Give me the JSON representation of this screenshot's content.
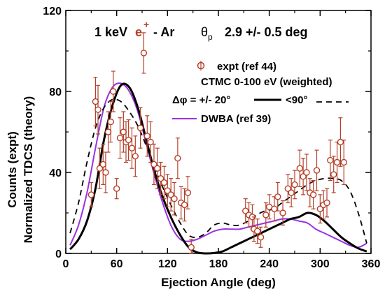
{
  "chart_data": {
    "type": "line",
    "title_parts": {
      "energy": "1 keV",
      "particle": "e",
      "charge": "+",
      "target": "- Ar",
      "theta_sym": "θ",
      "theta_sub": "p",
      "theta_val": "2.9 +/-  0.5 deg"
    },
    "xlabel": "Ejection Angle (deg)",
    "ylabel_outer": "Counts (expt)",
    "ylabel_inner": "Normalized TDCS (theory)",
    "xlim": [
      0,
      360
    ],
    "ylim": [
      0,
      120
    ],
    "x_ticks": [
      "0",
      "60",
      "120",
      "180",
      "240",
      "300",
      "360"
    ],
    "y_ticks": [
      "0",
      "40",
      "80",
      "120"
    ],
    "grid": false,
    "legend": {
      "expt": "expt (ref 44)",
      "ctmc": "CTMC 0-100 eV (weighted)",
      "delta_phi": "Δφ = +/- 20°",
      "lt90": "<90°",
      "dwba": "DWBA (ref 39)"
    },
    "colors": {
      "expt": "#b5402a",
      "ctmc": "#000000",
      "dwba": "#9b30e0",
      "text": "#000000"
    },
    "series": [
      {
        "name": "expt (ref 44)",
        "style": "points-with-errorbars",
        "x": [
          30,
          35,
          38,
          40,
          44,
          47,
          50,
          53,
          56,
          60,
          64,
          68,
          71,
          74,
          78,
          82,
          88,
          92,
          96,
          100,
          104,
          108,
          112,
          116,
          120,
          124,
          128,
          132,
          136,
          140,
          144,
          148,
          212,
          216,
          220,
          222,
          226,
          230,
          236,
          240,
          246,
          250,
          256,
          262,
          266,
          270,
          276,
          280,
          284,
          288,
          292,
          296,
          300,
          304,
          308,
          312,
          316,
          320,
          324,
          328
        ],
        "y": [
          29,
          75,
          71,
          42,
          44,
          40,
          60,
          65,
          80,
          32,
          57,
          60,
          55,
          56,
          52,
          48,
          62,
          99,
          58,
          55,
          44,
          42,
          37,
          35,
          31,
          29,
          27,
          47,
          25,
          24,
          30,
          3,
          21,
          19,
          18,
          12,
          11,
          8,
          19,
          23,
          22,
          28,
          20,
          32,
          30,
          34,
          42,
          38,
          40,
          30,
          29,
          41,
          22,
          24,
          25,
          46,
          39,
          45,
          55,
          45
        ],
        "err": [
          6,
          12,
          12,
          10,
          10,
          10,
          10,
          10,
          10,
          5,
          10,
          10,
          10,
          10,
          10,
          10,
          10,
          10,
          10,
          10,
          10,
          10,
          8,
          8,
          8,
          8,
          8,
          10,
          8,
          8,
          8,
          4,
          6,
          6,
          6,
          6,
          6,
          5,
          6,
          6,
          6,
          7,
          6,
          7,
          7,
          7,
          9,
          9,
          9,
          7,
          7,
          10,
          7,
          7,
          7,
          10,
          9,
          10,
          12,
          11
        ]
      },
      {
        "name": "Δφ = +/- 20°",
        "style": "solid",
        "x": [
          5,
          15,
          25,
          35,
          45,
          55,
          65,
          75,
          85,
          95,
          105,
          115,
          125,
          135,
          145,
          155,
          165,
          175,
          185,
          195,
          205,
          215,
          225,
          235,
          245,
          255,
          265,
          275,
          285,
          295,
          305,
          315,
          325,
          335,
          345,
          355
        ],
        "y": [
          2,
          7,
          16,
          32,
          56,
          73,
          83,
          82,
          72,
          56,
          40,
          27,
          17,
          9,
          3,
          0.5,
          0,
          0.2,
          1,
          3,
          5,
          7,
          9,
          11,
          13,
          15,
          17,
          18,
          20,
          19,
          16,
          12,
          8,
          5,
          2.5,
          1
        ]
      },
      {
        "name": "<90°",
        "style": "dashed",
        "x": [
          5,
          15,
          25,
          35,
          45,
          55,
          65,
          75,
          85,
          95,
          105,
          115,
          125,
          135,
          145,
          155,
          165,
          175,
          185,
          195,
          205,
          215,
          225,
          235,
          245,
          255,
          265,
          275,
          285,
          295,
          305,
          315,
          325,
          335,
          345,
          355
        ],
        "y": [
          10,
          25,
          45,
          62,
          72,
          76,
          75,
          70,
          63,
          53,
          42,
          32,
          23,
          15,
          9,
          8,
          10,
          14,
          15,
          14,
          14,
          16,
          19,
          21,
          22,
          25,
          28,
          31,
          34,
          36,
          37,
          37,
          36,
          31,
          20,
          5
        ]
      },
      {
        "name": "DWBA (ref 39)",
        "style": "solid",
        "x": [
          5,
          15,
          25,
          35,
          45,
          55,
          65,
          75,
          85,
          95,
          105,
          115,
          125,
          135,
          145,
          155,
          165,
          175,
          185,
          195,
          205,
          215,
          225,
          235,
          245,
          255,
          265,
          275,
          285,
          295,
          305,
          315,
          325,
          335,
          345,
          355
        ],
        "y": [
          4,
          14,
          30,
          52,
          72,
          82,
          84,
          80,
          70,
          54,
          38,
          24,
          13,
          7,
          6,
          7,
          9,
          11,
          12,
          12,
          12,
          13,
          14,
          15,
          16,
          17,
          17,
          16,
          15,
          12,
          10,
          8,
          6,
          4,
          3,
          5
        ]
      }
    ]
  }
}
